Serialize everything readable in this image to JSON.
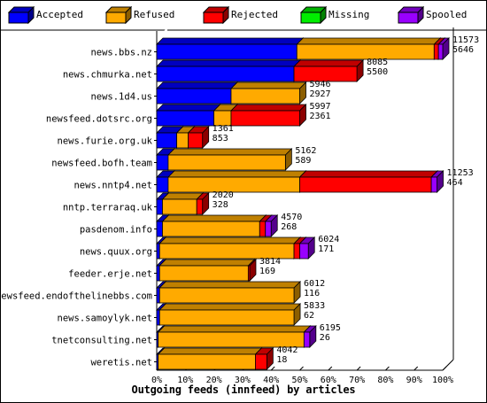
{
  "chart_data": {
    "type": "bar",
    "orientation": "horizontal",
    "stacked": true,
    "percent_scale": true,
    "title": "Outgoing feeds (innfeed) by articles",
    "xlim": [
      0,
      100
    ],
    "x_ticks": [
      "0%",
      "10%",
      "20%",
      "30%",
      "40%",
      "50%",
      "60%",
      "70%",
      "80%",
      "90%",
      "100%"
    ],
    "legend_position": "top",
    "categories": [
      "news.bbs.nz",
      "news.chmurka.net",
      "news.1d4.us",
      "newsfeed.dotsrc.org",
      "news.furie.org.uk",
      "newsfeed.bofh.team",
      "news.nntp4.net",
      "nntp.terraraq.uk",
      "pasdenom.info",
      "news.quux.org",
      "feeder.erje.net",
      "newsfeed.endofthelinebbs.com",
      "news.samoylyk.net",
      "tnetconsulting.net",
      "weretis.net"
    ],
    "totals_top": [
      11573,
      8085,
      5946,
      5997,
      1361,
      5162,
      11253,
      2020,
      4570,
      6024,
      3814,
      6012,
      5833,
      6195,
      4042
    ],
    "totals_bottom": [
      5646,
      5500,
      2927,
      2361,
      853,
      589,
      464,
      328,
      268,
      171,
      169,
      116,
      62,
      26,
      18
    ],
    "series": [
      {
        "name": "Accepted",
        "color": "#0000ff",
        "values": [
          49,
          48,
          26,
          20,
          7,
          4,
          4,
          2,
          2,
          1,
          1,
          1,
          1,
          0.5,
          0.5
        ]
      },
      {
        "name": "Refused",
        "color": "#ffaa00",
        "values": [
          48,
          0,
          24,
          6,
          4,
          41,
          46,
          12,
          34,
          47,
          31,
          47,
          47,
          51,
          34
        ]
      },
      {
        "name": "Rejected",
        "color": "#ff0000",
        "values": [
          1.5,
          22,
          0,
          24,
          5,
          0,
          46,
          2,
          2,
          2,
          0.5,
          0,
          0,
          0,
          4
        ]
      },
      {
        "name": "Missing",
        "color": "#00ee00",
        "values": [
          0,
          0,
          0,
          0,
          0,
          0,
          0,
          0,
          0,
          0,
          0,
          0,
          0,
          0,
          0
        ]
      },
      {
        "name": "Spooled",
        "color": "#9900ff",
        "values": [
          1.5,
          0,
          0,
          0,
          0,
          0,
          2,
          0,
          2,
          3,
          0,
          0,
          0,
          2,
          0
        ]
      }
    ]
  }
}
